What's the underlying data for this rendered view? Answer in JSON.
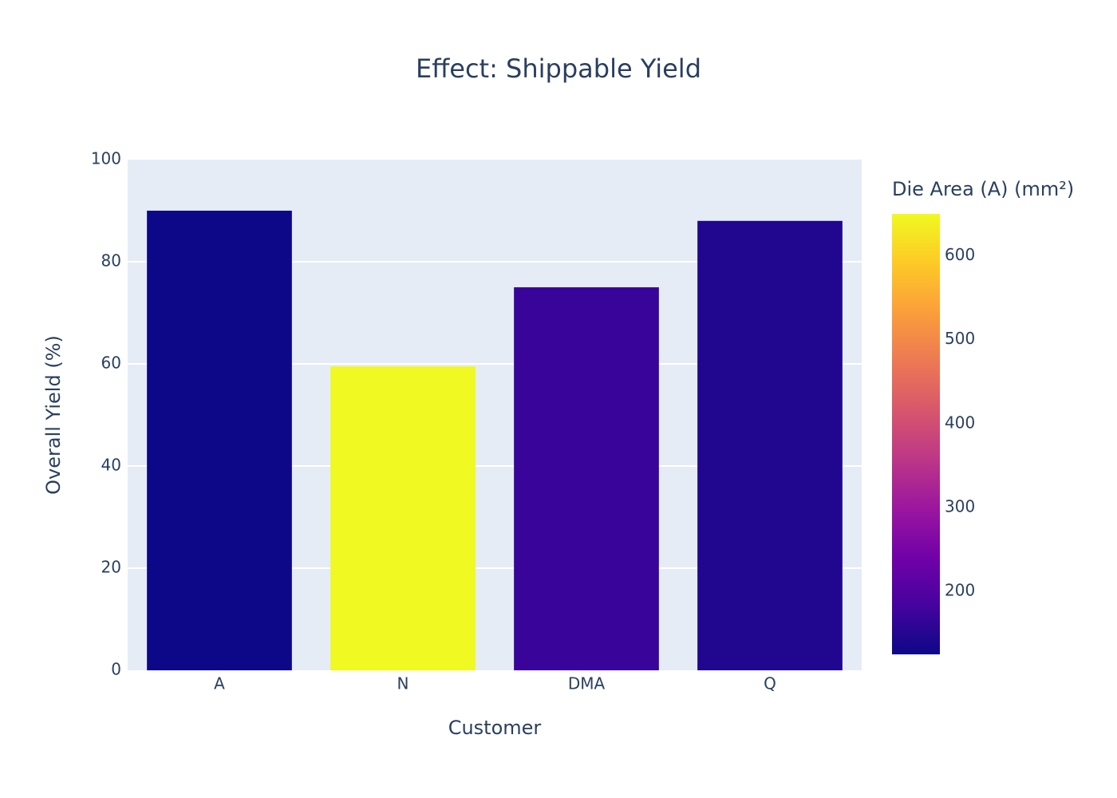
{
  "chart_data": {
    "type": "bar",
    "title": "Effect: Shippable Yield",
    "x_label": "Customer",
    "y_label": "Overall Yield (%)",
    "categories": [
      "A",
      "N",
      "DMA",
      "Q"
    ],
    "values": [
      90,
      59.5,
      75,
      88
    ],
    "color_values": [
      125,
      650,
      170,
      145
    ],
    "colorscale": [
      "#0d0887",
      "#46039f",
      "#7201a8",
      "#9c179e",
      "#bd3786",
      "#d8576b",
      "#ed7953",
      "#fb9f3a",
      "#fdca26",
      "#f0f921"
    ],
    "colorbar": {
      "title": "Die Area (A) (mm²)",
      "lim": [
        125,
        650
      ],
      "ticks": [
        200,
        300,
        400,
        500,
        600
      ]
    },
    "ylim": [
      0,
      100
    ],
    "yticks": [
      0,
      20,
      40,
      60,
      80,
      100
    ],
    "grid": true
  }
}
